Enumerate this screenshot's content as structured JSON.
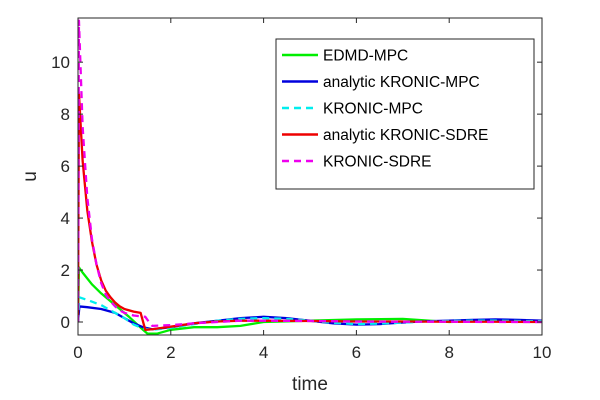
{
  "chart_data": {
    "type": "line",
    "title": "",
    "xlabel": "time",
    "ylabel": "u",
    "xlim": [
      0,
      10
    ],
    "ylim": [
      -0.5,
      11.7
    ],
    "xticks": [
      0,
      2,
      4,
      6,
      8,
      10
    ],
    "yticks": [
      0,
      2,
      4,
      6,
      8,
      10
    ],
    "grid": false,
    "legend_position": "top-right",
    "series": [
      {
        "name": "EDMD-MPC",
        "color": "#00ee00",
        "dash": "solid",
        "x": [
          0,
          0.02,
          0.1,
          0.3,
          0.5,
          0.8,
          1.1,
          1.4,
          1.5,
          1.7,
          2.0,
          2.5,
          3.0,
          3.5,
          4.0,
          5.0,
          6.0,
          7.0,
          8.0,
          9.0,
          10.0
        ],
        "y": [
          0.0,
          2.1,
          1.9,
          1.45,
          1.1,
          0.65,
          0.2,
          -0.3,
          -0.45,
          -0.45,
          -0.3,
          -0.2,
          -0.2,
          -0.15,
          0.0,
          0.05,
          0.1,
          0.12,
          0.0,
          0.05,
          0.05
        ]
      },
      {
        "name": "analytic KRONIC-MPC",
        "color": "#0000dd",
        "dash": "solid",
        "x": [
          0,
          0.03,
          0.2,
          0.5,
          0.8,
          1.0,
          1.2,
          1.4,
          1.6,
          2.0,
          2.5,
          3.0,
          3.5,
          4.0,
          4.5,
          5.0,
          5.5,
          6.0,
          6.5,
          7.0,
          7.5,
          8.0,
          8.5,
          9.0,
          9.5,
          10.0
        ],
        "y": [
          0.0,
          0.6,
          0.57,
          0.5,
          0.35,
          0.15,
          -0.05,
          -0.2,
          -0.28,
          -0.2,
          -0.05,
          0.05,
          0.15,
          0.2,
          0.15,
          0.05,
          -0.05,
          -0.1,
          -0.08,
          -0.02,
          0.03,
          0.05,
          0.08,
          0.1,
          0.08,
          0.05
        ]
      },
      {
        "name": "KRONIC-MPC",
        "color": "#00eeee",
        "dash": "dashed",
        "x": [
          0,
          0.03,
          0.2,
          0.5,
          0.8,
          1.0,
          1.2,
          1.4,
          1.6,
          2.0,
          2.5,
          3.0,
          3.5,
          4.0,
          4.5,
          5.0,
          5.5,
          6.0,
          6.5,
          7.0,
          7.5,
          8.0,
          8.5,
          9.0,
          9.5,
          10.0
        ],
        "y": [
          0.0,
          0.95,
          0.85,
          0.65,
          0.35,
          0.15,
          -0.1,
          -0.25,
          -0.3,
          -0.22,
          -0.08,
          0.05,
          0.12,
          0.15,
          0.12,
          0.05,
          -0.03,
          -0.08,
          -0.06,
          -0.02,
          0.02,
          0.04,
          0.05,
          0.05,
          0.04,
          0.03
        ]
      },
      {
        "name": "analytic KRONIC-SDRE",
        "color": "#ee0000",
        "dash": "solid",
        "x": [
          0,
          0.02,
          0.1,
          0.2,
          0.3,
          0.4,
          0.5,
          0.6,
          0.7,
          0.8,
          0.9,
          1.0,
          1.2,
          1.35,
          1.45,
          1.6,
          2.0,
          2.5,
          3.0,
          3.5,
          4.0,
          5.0,
          6.0,
          7.0,
          8.0,
          9.0,
          10.0
        ],
        "y": [
          0.0,
          8.8,
          6.2,
          4.3,
          3.1,
          2.2,
          1.6,
          1.2,
          0.95,
          0.75,
          0.6,
          0.5,
          0.4,
          0.35,
          -0.3,
          -0.28,
          -0.18,
          -0.05,
          0.02,
          0.05,
          0.05,
          0.04,
          0.02,
          0.02,
          0.01,
          0.01,
          0.0
        ]
      },
      {
        "name": "KRONIC-SDRE",
        "color": "#ee00ee",
        "dash": "dashed",
        "x": [
          0,
          0.02,
          0.1,
          0.2,
          0.3,
          0.4,
          0.5,
          0.6,
          0.7,
          0.8,
          0.9,
          1.0,
          1.2,
          1.45,
          1.55,
          1.6,
          2.0,
          2.5,
          3.0,
          3.5,
          4.0,
          5.0,
          6.0,
          7.0,
          8.0,
          9.0,
          10.0
        ],
        "y": [
          0.0,
          11.6,
          7.5,
          4.8,
          3.2,
          2.2,
          1.5,
          1.05,
          0.8,
          0.6,
          0.45,
          0.35,
          0.25,
          0.2,
          -0.05,
          -0.15,
          -0.12,
          -0.05,
          0.0,
          0.05,
          0.05,
          0.04,
          0.02,
          0.01,
          0.01,
          0.0,
          0.0
        ]
      }
    ]
  }
}
